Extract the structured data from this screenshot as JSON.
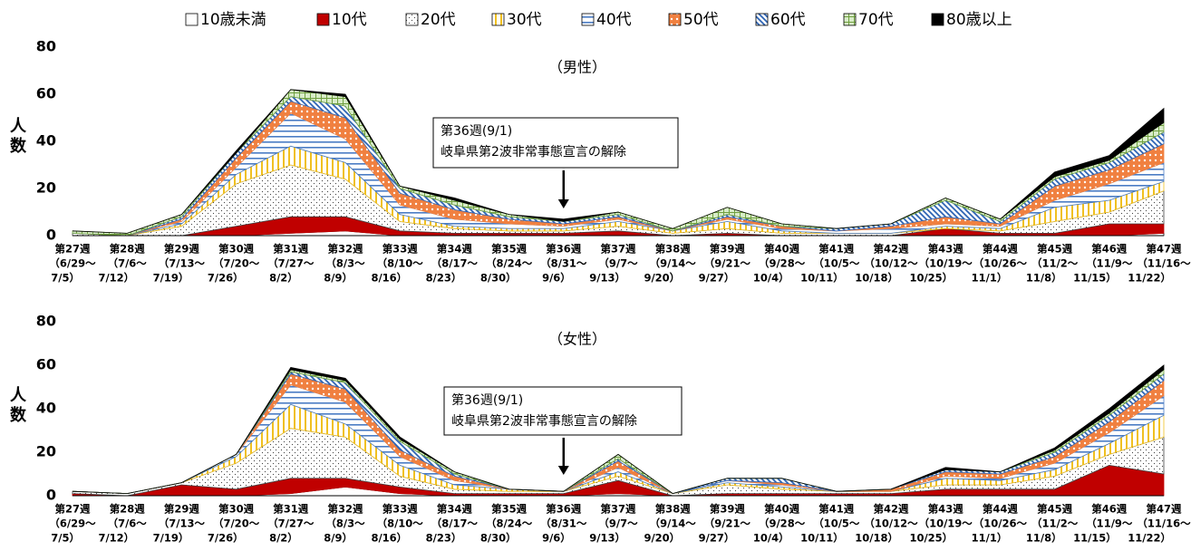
{
  "chart_data": [
    {
      "type": "stacked-area",
      "subtitle": "（男性）",
      "ylabel": [
        "人",
        "数"
      ],
      "categories": [
        [
          "第27週",
          "（6/29～",
          "7/5）"
        ],
        [
          "第28週",
          "（7/6～",
          "7/12）"
        ],
        [
          "第29週",
          "（7/13～",
          "7/19）"
        ],
        [
          "第30週",
          "（7/20～",
          "7/26）"
        ],
        [
          "第31週",
          "（7/27～",
          "8/2）"
        ],
        [
          "第32週",
          "（8/3～",
          "8/9）"
        ],
        [
          "第33週",
          "（8/10～",
          "8/16）"
        ],
        [
          "第34週",
          "（8/17～",
          "8/23）"
        ],
        [
          "第35週",
          "（8/24～",
          "8/30）"
        ],
        [
          "第36週",
          "（8/31～",
          "9/6）"
        ],
        [
          "第37週",
          "（9/7～",
          "9/13）"
        ],
        [
          "第38週",
          "（9/14～",
          "9/20）"
        ],
        [
          "第39週",
          "（9/21～",
          "9/27）"
        ],
        [
          "第40週",
          "（9/28～",
          "10/4）"
        ],
        [
          "第41週",
          "（10/5～",
          "10/11）"
        ],
        [
          "第42週",
          "（10/12～",
          "10/18）"
        ],
        [
          "第43週",
          "（10/19～",
          "10/25）"
        ],
        [
          "第44週",
          "（10/26～",
          "11/1）"
        ],
        [
          "第45週",
          "（11/2～",
          "11/8）"
        ],
        [
          "第46週",
          "（11/9～",
          "11/15）"
        ],
        [
          "第47週",
          "（11/16～",
          "11/22）"
        ]
      ],
      "series": [
        {
          "name": "10歳未満",
          "color": "#ffffff",
          "pattern": "solid",
          "values": [
            0,
            0,
            0,
            0,
            1,
            2,
            0,
            0,
            0,
            0,
            0,
            0,
            0,
            0,
            0,
            0,
            0,
            0,
            0,
            0,
            1
          ]
        },
        {
          "name": "10代",
          "color": "#c00000",
          "pattern": "solid",
          "values": [
            0,
            0,
            0,
            4,
            7,
            6,
            2,
            1,
            1,
            1,
            2,
            0,
            1,
            0,
            0,
            0,
            3,
            1,
            1,
            5,
            4
          ]
        },
        {
          "name": "20代",
          "color": "#404040",
          "pattern": "dots",
          "values": [
            1,
            0,
            4,
            18,
            22,
            16,
            4,
            2,
            1,
            1,
            2,
            1,
            2,
            1,
            1,
            1,
            0,
            1,
            5,
            5,
            14
          ]
        },
        {
          "name": "30代",
          "color": "#f0c020",
          "pattern": "vlines",
          "values": [
            0,
            0,
            1,
            4,
            8,
            7,
            3,
            1,
            1,
            1,
            2,
            1,
            3,
            1,
            0,
            0,
            1,
            1,
            6,
            5,
            4
          ]
        },
        {
          "name": "40代",
          "color": "#4a7cc4",
          "pattern": "hlines",
          "values": [
            0,
            0,
            1,
            3,
            14,
            10,
            4,
            3,
            2,
            1,
            1,
            0,
            1,
            1,
            1,
            2,
            1,
            1,
            3,
            7,
            8
          ]
        },
        {
          "name": "50代",
          "color": "#f08040",
          "pattern": "bigdots",
          "values": [
            0,
            0,
            1,
            4,
            5,
            9,
            5,
            4,
            2,
            1,
            1,
            0,
            1,
            1,
            0,
            1,
            3,
            1,
            6,
            6,
            8
          ]
        },
        {
          "name": "60代",
          "color": "#2e64b4",
          "pattern": "diag",
          "values": [
            0,
            0,
            1,
            2,
            2,
            5,
            2,
            2,
            1,
            1,
            1,
            0,
            1,
            0,
            1,
            1,
            7,
            1,
            3,
            3,
            5
          ]
        },
        {
          "name": "70代",
          "color": "#70a040",
          "pattern": "grid",
          "values": [
            1,
            1,
            1,
            0,
            3,
            4,
            1,
            2,
            1,
            0,
            1,
            1,
            3,
            1,
            0,
            0,
            1,
            1,
            1,
            1,
            4
          ]
        },
        {
          "name": "80歳以上",
          "color": "#000000",
          "pattern": "solid",
          "values": [
            0,
            0,
            0,
            1,
            0,
            1,
            0,
            1,
            0,
            1,
            0,
            0,
            0,
            0,
            0,
            0,
            0,
            0,
            2,
            2,
            6
          ]
        }
      ],
      "ylim": [
        0,
        80
      ],
      "yticks": [
        0,
        20,
        40,
        60,
        80
      ],
      "annotation": [
        "第36週(9/1)",
        "岐阜県第2波非常事態宣言の解除"
      ]
    },
    {
      "type": "stacked-area",
      "subtitle": "（女性）",
      "ylabel": [
        "人",
        "数"
      ],
      "categories": [
        [
          "第27週",
          "（6/29～",
          "7/5）"
        ],
        [
          "第28週",
          "（7/6～",
          "7/12）"
        ],
        [
          "第29週",
          "（7/13～",
          "7/19）"
        ],
        [
          "第30週",
          "（7/20～",
          "7/26）"
        ],
        [
          "第31週",
          "（7/27～",
          "8/2）"
        ],
        [
          "第32週",
          "（8/3～",
          "8/9）"
        ],
        [
          "第33週",
          "（8/10～",
          "8/16）"
        ],
        [
          "第34週",
          "（8/17～",
          "8/23）"
        ],
        [
          "第35週",
          "（8/24～",
          "8/30）"
        ],
        [
          "第36週",
          "（8/31～",
          "9/6）"
        ],
        [
          "第37週",
          "（9/7～",
          "9/13）"
        ],
        [
          "第38週",
          "（9/14～",
          "9/20）"
        ],
        [
          "第39週",
          "（9/21～",
          "9/27）"
        ],
        [
          "第40週",
          "（9/28～",
          "10/4）"
        ],
        [
          "第41週",
          "（10/5～",
          "10/11）"
        ],
        [
          "第42週",
          "（10/12～",
          "10/18）"
        ],
        [
          "第43週",
          "（10/19～",
          "10/25）"
        ],
        [
          "第44週",
          "（10/26～",
          "11/1）"
        ],
        [
          "第45週",
          "（11/2～",
          "11/8）"
        ],
        [
          "第46週",
          "（11/9～",
          "11/15）"
        ],
        [
          "第47週",
          "（11/16～",
          "11/22）"
        ]
      ],
      "series": [
        {
          "values": [
            0,
            0,
            0,
            0,
            1,
            4,
            1,
            0,
            0,
            0,
            1,
            0,
            0,
            0,
            0,
            0,
            0,
            0,
            0,
            0,
            0
          ]
        },
        {
          "values": [
            1,
            0,
            5,
            3,
            7,
            4,
            3,
            1,
            1,
            1,
            6,
            0,
            1,
            1,
            1,
            1,
            3,
            3,
            3,
            14,
            10
          ]
        },
        {
          "values": [
            1,
            1,
            1,
            12,
            23,
            19,
            5,
            2,
            1,
            1,
            2,
            1,
            4,
            2,
            1,
            1,
            2,
            2,
            6,
            5,
            17
          ]
        },
        {
          "values": [
            0,
            0,
            0,
            3,
            11,
            6,
            5,
            2,
            1,
            0,
            2,
            0,
            1,
            1,
            0,
            0,
            3,
            2,
            3,
            5,
            10
          ]
        },
        {
          "values": [
            0,
            0,
            0,
            1,
            9,
            10,
            4,
            2,
            0,
            0,
            2,
            0,
            1,
            1,
            0,
            0,
            1,
            1,
            3,
            5,
            9
          ]
        },
        {
          "values": [
            0,
            0,
            0,
            0,
            5,
            6,
            3,
            2,
            0,
            0,
            3,
            0,
            0,
            1,
            0,
            1,
            2,
            2,
            3,
            5,
            7
          ]
        },
        {
          "values": [
            0,
            0,
            0,
            0,
            1,
            3,
            4,
            1,
            0,
            0,
            1,
            0,
            1,
            2,
            0,
            0,
            1,
            1,
            2,
            3,
            3
          ]
        },
        {
          "values": [
            0,
            0,
            0,
            0,
            1,
            1,
            1,
            1,
            0,
            0,
            2,
            0,
            0,
            0,
            0,
            0,
            0,
            0,
            1,
            1,
            2
          ]
        },
        {
          "values": [
            0,
            0,
            0,
            0,
            1,
            1,
            1,
            0,
            0,
            0,
            0,
            0,
            0,
            0,
            0,
            0,
            1,
            0,
            1,
            2,
            2
          ]
        }
      ],
      "ylim": [
        0,
        80
      ],
      "yticks": [
        0,
        20,
        40,
        60,
        80
      ],
      "annotation": [
        "第36週(9/1)",
        "岐阜県第2波非常事態宣言の解除"
      ]
    }
  ]
}
